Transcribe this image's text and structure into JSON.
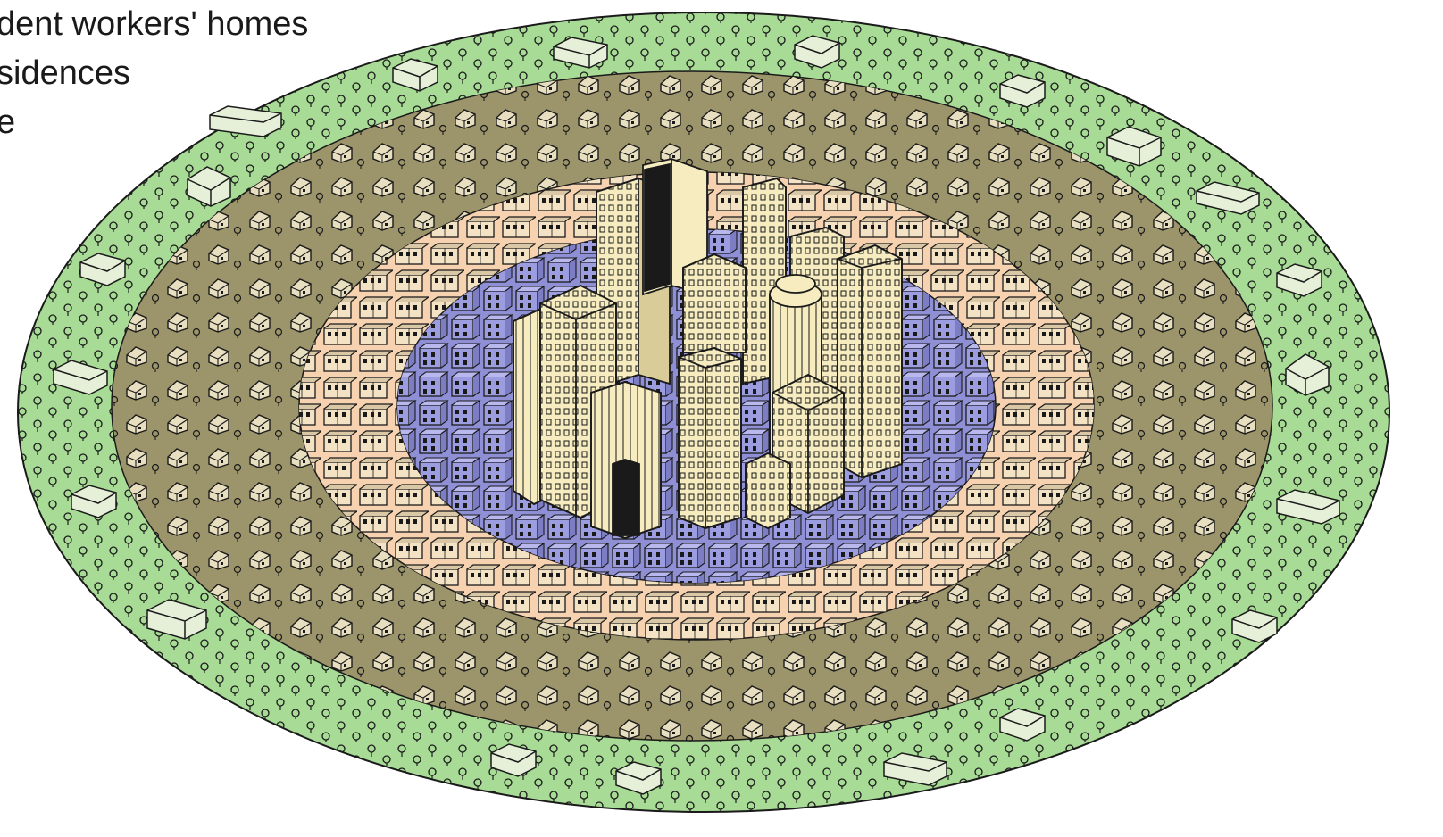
{
  "legend": {
    "lines": [
      "dent workers' homes",
      "sidences",
      "e"
    ]
  },
  "zones": [
    {
      "id": "outer-commuter-zone",
      "color": "#a8dc96"
    },
    {
      "id": "residential-zone",
      "color": "#9c946a"
    },
    {
      "id": "workers-homes-zone",
      "color": "#f6d2b0"
    },
    {
      "id": "transition-zone",
      "color": "#8f8fd6"
    },
    {
      "id": "central-business-district",
      "color": "#f6ecc0"
    }
  ],
  "colors": {
    "outline": "#1a1a1a",
    "building_shade": "#2a2a2a"
  },
  "icons": [
    "tree-icon",
    "house-icon",
    "row-house-icon",
    "skyscraper-icon"
  ]
}
